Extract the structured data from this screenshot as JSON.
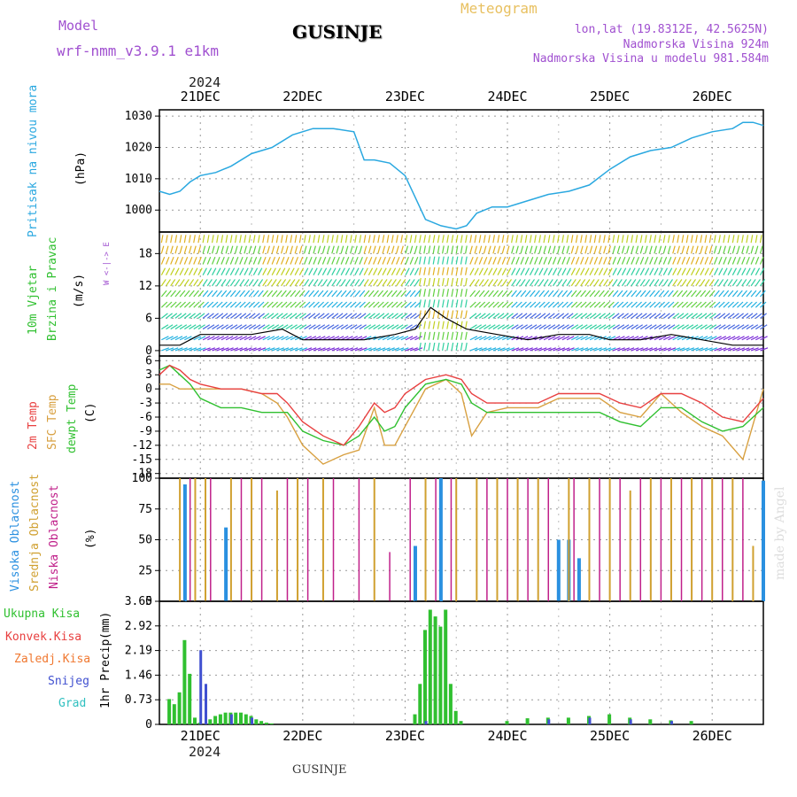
{
  "header": {
    "model_label": "Model",
    "model_name": "wrf-nmm_v3.9.1 e1km",
    "station_title": "GUSINJE",
    "meteogram_label": "Meteogram",
    "coords": "lon,lat (19.8312E, 42.5625N)",
    "elevation": "Nadmorska Visina 924m",
    "model_elevation": "Nadmorska Visina u modelu 981.584m",
    "year_top": "2024",
    "year_bottom": "2024",
    "footer_station": "GUSINJE",
    "watermark": "made by Angel"
  },
  "days": [
    "21DEC",
    "22DEC",
    "23DEC",
    "24DEC",
    "25DEC",
    "26DEC"
  ],
  "panel_labels": {
    "pressure": {
      "name": "Pritisak na nivou mora",
      "unit": "(hPa)"
    },
    "wind": {
      "name1": "10m Vjetar",
      "name2": "Brzina i Pravac",
      "unit": "(m/s)",
      "compass": "W <-|-> E"
    },
    "temp": {
      "name1": "2m Temp",
      "name2": "SFC Temp",
      "name3": "dewpt Temp",
      "unit": "(C)"
    },
    "cloud": {
      "name1": "Visoka Oblacnost",
      "name2": "Srednja Oblacnost",
      "name3": "Niska Oblacnost",
      "unit": "(%)"
    },
    "precip": {
      "name": "1hr Precip",
      "unit": "(mm)",
      "legend": [
        "Ukupna Kisa",
        "Konvek.Kisa",
        "Zaledj.Kisa",
        "Snijeg",
        "Grad"
      ]
    }
  },
  "colors": {
    "pressure": "#2aa8e0",
    "t2m": "#e84040",
    "tsfc": "#d8a040",
    "dewpt": "#30c030",
    "cloud_high": "#2a90e0",
    "cloud_mid": "#d0a030",
    "cloud_low": "#c0208a",
    "precip_total": "#30c030",
    "precip_conv": "#e84040",
    "precip_freeze": "#f07830",
    "precip_snow": "#4050d0",
    "precip_grad": "#30c0c0"
  },
  "chart_data": [
    {
      "type": "line",
      "title": "",
      "ylabel": "Pritisak na nivou mora (hPa)",
      "x_range_days": [
        20.6,
        26.5
      ],
      "ylim": [
        993,
        1032
      ],
      "yticks": [
        1000,
        1010,
        1020,
        1030
      ],
      "series": [
        {
          "name": "Pritisak na nivou mora",
          "x": [
            20.6,
            20.7,
            20.8,
            20.9,
            21.0,
            21.15,
            21.3,
            21.5,
            21.7,
            21.9,
            22.1,
            22.3,
            22.5,
            22.6,
            22.7,
            22.85,
            23.0,
            23.1,
            23.2,
            23.35,
            23.5,
            23.6,
            23.7,
            23.85,
            24.0,
            24.2,
            24.4,
            24.6,
            24.8,
            25.0,
            25.2,
            25.4,
            25.6,
            25.8,
            26.0,
            26.2,
            26.3,
            26.4,
            26.5
          ],
          "values": [
            1006,
            1005,
            1006,
            1009,
            1011,
            1012,
            1014,
            1018,
            1020,
            1024,
            1026,
            1026,
            1025,
            1016,
            1016,
            1015,
            1011,
            1004,
            997,
            995,
            994,
            995,
            999,
            1001,
            1001,
            1003,
            1005,
            1006,
            1008,
            1013,
            1017,
            1019,
            1020,
            1023,
            1025,
            1026,
            1028,
            1028,
            1027
          ]
        }
      ]
    },
    {
      "type": "line",
      "title": "",
      "ylabel": "10m Vjetar Brzina i Pravac (m/s)",
      "ylim": [
        -1,
        22
      ],
      "yticks": [
        0,
        6,
        12,
        18
      ],
      "series": [
        {
          "name": "10m Vjetar",
          "x": [
            20.6,
            20.8,
            21.0,
            21.2,
            21.5,
            21.8,
            22.0,
            22.3,
            22.6,
            22.9,
            23.1,
            23.25,
            23.4,
            23.6,
            23.9,
            24.2,
            24.5,
            24.8,
            25.0,
            25.3,
            25.6,
            25.9,
            26.2,
            26.5
          ],
          "values": [
            1,
            1,
            3,
            3,
            3,
            4,
            2,
            2,
            2,
            3,
            4,
            8,
            6,
            4,
            3,
            2,
            3,
            3,
            2,
            2,
            3,
            2,
            1,
            1
          ]
        }
      ]
    },
    {
      "type": "line",
      "title": "",
      "ylabel": "Temp (C)",
      "ylim": [
        -19,
        7
      ],
      "yticks": [
        6,
        3,
        0,
        -3,
        -6,
        -9,
        -12,
        -15,
        -18
      ],
      "series": [
        {
          "name": "2m Temp",
          "x": [
            20.6,
            20.7,
            20.8,
            20.9,
            21.0,
            21.2,
            21.4,
            21.6,
            21.75,
            21.85,
            22.0,
            22.2,
            22.4,
            22.55,
            22.7,
            22.8,
            22.9,
            23.0,
            23.2,
            23.4,
            23.55,
            23.65,
            23.8,
            24.0,
            24.3,
            24.5,
            24.7,
            24.9,
            25.1,
            25.3,
            25.5,
            25.7,
            25.9,
            26.1,
            26.3,
            26.5
          ],
          "values": [
            3,
            5,
            4,
            2,
            1,
            0,
            0,
            -1,
            -1,
            -3,
            -7,
            -10,
            -12,
            -8,
            -3,
            -5,
            -4,
            -1,
            2,
            3,
            2,
            -1,
            -3,
            -3,
            -3,
            -1,
            -1,
            -1,
            -3,
            -4,
            -1,
            -1,
            -3,
            -6,
            -7,
            -2
          ]
        },
        {
          "name": "SFC Temp",
          "x": [
            20.6,
            20.7,
            20.8,
            20.9,
            21.0,
            21.2,
            21.4,
            21.6,
            21.75,
            21.85,
            22.0,
            22.2,
            22.4,
            22.55,
            22.7,
            22.8,
            22.9,
            23.0,
            23.2,
            23.4,
            23.55,
            23.65,
            23.8,
            24.0,
            24.3,
            24.5,
            24.7,
            24.9,
            25.1,
            25.3,
            25.5,
            25.7,
            25.9,
            26.1,
            26.3,
            26.5
          ],
          "values": [
            1,
            1,
            0,
            0,
            0,
            0,
            0,
            -1,
            -3,
            -6,
            -12,
            -16,
            -14,
            -13,
            -4,
            -12,
            -12,
            -8,
            0,
            2,
            -1,
            -10,
            -5,
            -4,
            -4,
            -2,
            -2,
            -2,
            -5,
            -6,
            -1,
            -5,
            -8,
            -10,
            -15,
            0
          ]
        },
        {
          "name": "dewpt Temp",
          "x": [
            20.6,
            20.7,
            20.8,
            20.9,
            21.0,
            21.2,
            21.4,
            21.6,
            21.75,
            21.85,
            22.0,
            22.2,
            22.4,
            22.55,
            22.7,
            22.8,
            22.9,
            23.0,
            23.2,
            23.4,
            23.55,
            23.65,
            23.8,
            24.0,
            24.3,
            24.5,
            24.7,
            24.9,
            25.1,
            25.3,
            25.5,
            25.7,
            25.9,
            26.1,
            26.3,
            26.5
          ],
          "values": [
            4,
            5,
            3,
            1,
            -2,
            -4,
            -4,
            -5,
            -5,
            -5,
            -9,
            -11,
            -12,
            -10,
            -6,
            -9,
            -8,
            -4,
            1,
            2,
            1,
            -3,
            -5,
            -5,
            -5,
            -5,
            -5,
            -5,
            -7,
            -8,
            -4,
            -4,
            -7,
            -9,
            -8,
            -4
          ]
        }
      ]
    },
    {
      "type": "bar",
      "title": "",
      "ylabel": "Oblacnost (%)",
      "ylim": [
        0,
        100
      ],
      "yticks": [
        0,
        25,
        50,
        75,
        100
      ],
      "series": [
        {
          "name": "Visoka Oblacnost",
          "x": [
            20.85,
            21.25,
            21.9,
            23.1,
            23.35,
            24.5,
            24.6,
            24.7,
            26.5
          ],
          "values": [
            95,
            60,
            0,
            45,
            100,
            50,
            50,
            35,
            98
          ]
        },
        {
          "name": "Srednja Oblacnost",
          "x": [
            20.8,
            20.95,
            21.05,
            21.3,
            21.5,
            21.75,
            21.95,
            22.2,
            22.7,
            23.2,
            23.5,
            23.7,
            23.9,
            24.1,
            24.3,
            24.6,
            24.8,
            25.0,
            25.2,
            25.4,
            25.6,
            25.8,
            26.0,
            26.2,
            26.4
          ],
          "values": [
            100,
            100,
            100,
            100,
            100,
            90,
            100,
            100,
            100,
            100,
            100,
            100,
            100,
            100,
            100,
            100,
            100,
            100,
            90,
            100,
            100,
            100,
            100,
            100,
            45
          ]
        },
        {
          "name": "Niska Oblacnost",
          "x": [
            20.9,
            21.1,
            21.4,
            21.6,
            21.85,
            22.05,
            22.3,
            22.55,
            22.85,
            23.05,
            23.3,
            23.45,
            23.8,
            24.0,
            24.2,
            24.4,
            24.65,
            24.9,
            25.1,
            25.3,
            25.5,
            25.7,
            25.9,
            26.1,
            26.3
          ],
          "values": [
            100,
            100,
            100,
            100,
            100,
            100,
            100,
            100,
            40,
            100,
            100,
            100,
            100,
            100,
            100,
            100,
            100,
            100,
            100,
            100,
            100,
            100,
            100,
            100,
            100
          ]
        }
      ]
    },
    {
      "type": "bar",
      "title": "",
      "ylabel": "1hr Precip (mm)",
      "ylim": [
        0,
        3.65
      ],
      "yticks": [
        0,
        0.73,
        1.46,
        2.19,
        2.92,
        3.65
      ],
      "series": [
        {
          "name": "Ukupna Kisa",
          "x": [
            20.7,
            20.75,
            20.8,
            20.85,
            20.9,
            20.95,
            21.0,
            21.1,
            21.15,
            21.2,
            21.25,
            21.3,
            21.35,
            21.4,
            21.45,
            21.5,
            21.55,
            21.6,
            21.65,
            21.7,
            23.1,
            23.15,
            23.2,
            23.25,
            23.3,
            23.35,
            23.4,
            23.45,
            23.5,
            23.55,
            24.0,
            24.2,
            24.4,
            24.6,
            24.8,
            25.0,
            25.2,
            25.4,
            25.6,
            25.8
          ],
          "values": [
            0.75,
            0.6,
            0.95,
            2.5,
            1.5,
            0.2,
            0.05,
            0.15,
            0.25,
            0.3,
            0.35,
            0.35,
            0.35,
            0.35,
            0.3,
            0.25,
            0.15,
            0.1,
            0.05,
            0.03,
            0.3,
            1.2,
            2.8,
            3.4,
            3.2,
            2.9,
            3.4,
            1.2,
            0.4,
            0.1,
            0.1,
            0.18,
            0.2,
            0.2,
            0.25,
            0.3,
            0.2,
            0.15,
            0.12,
            0.1
          ]
        },
        {
          "name": "Snijeg",
          "x": [
            21.0,
            21.05,
            21.3,
            21.5,
            23.2,
            24.4,
            24.8,
            25.2,
            25.6
          ],
          "values": [
            2.2,
            1.2,
            0.3,
            0.2,
            0.1,
            0.15,
            0.2,
            0.15,
            0.1
          ]
        }
      ]
    }
  ]
}
